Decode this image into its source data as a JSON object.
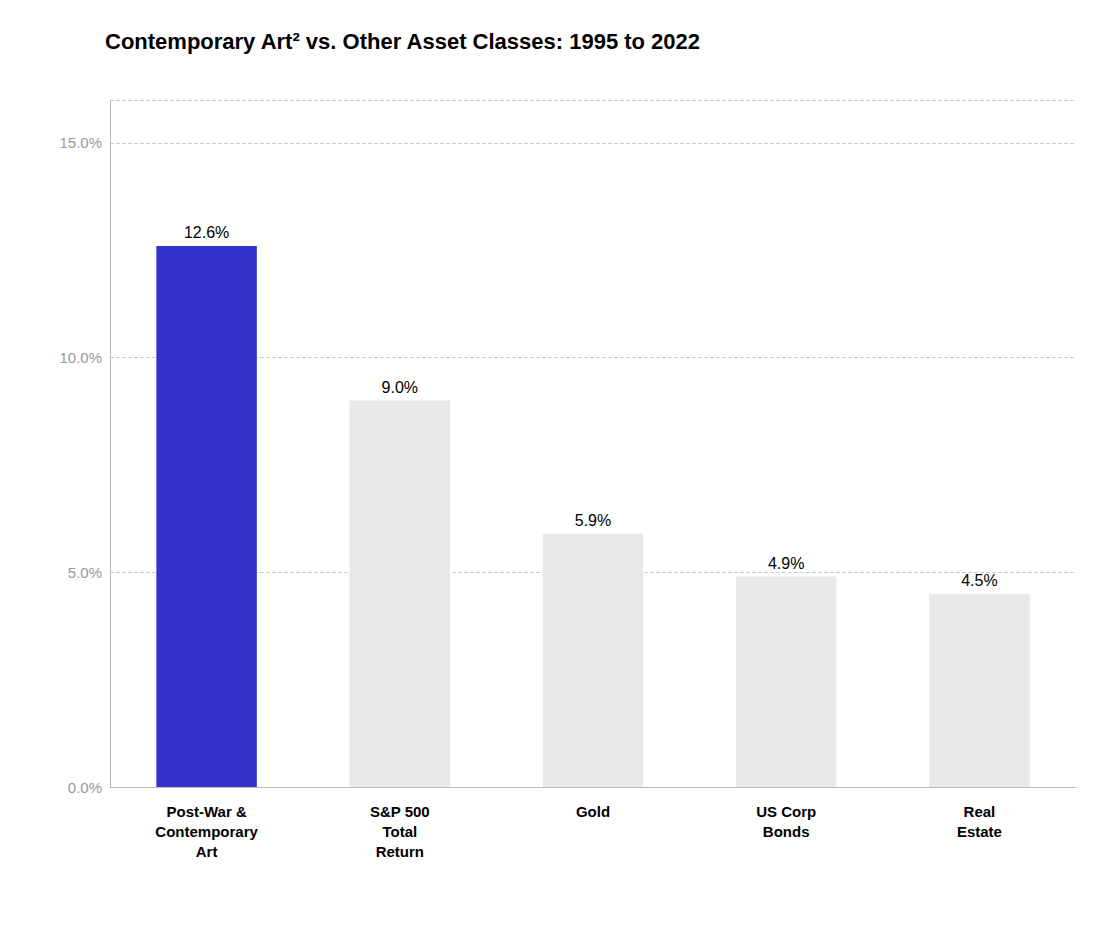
{
  "chart_data": {
    "type": "bar",
    "title": "Contemporary Art² vs. Other Asset Classes: 1995 to 2022",
    "categories": [
      "Post-War &\nContemporary\nArt",
      "S&P 500\nTotal\nReturn",
      "Gold",
      "US Corp\nBonds",
      "Real\nEstate"
    ],
    "values": [
      12.6,
      9.0,
      5.9,
      4.9,
      4.5
    ],
    "value_labels": [
      "12.6%",
      "9.0%",
      "5.9%",
      "4.9%",
      "4.5%"
    ],
    "colors": [
      "#3333cc",
      "#e8e8e8",
      "#e8e8e8",
      "#e8e8e8",
      "#e8e8e8"
    ],
    "ylim": [
      0,
      16.0
    ],
    "yticks": [
      {
        "value": 0,
        "label": "0.0%"
      },
      {
        "value": 5,
        "label": "5.0%"
      },
      {
        "value": 10,
        "label": "10.0%"
      },
      {
        "value": 15,
        "label": "15.0%"
      }
    ],
    "grid": true,
    "data_labels": true
  }
}
